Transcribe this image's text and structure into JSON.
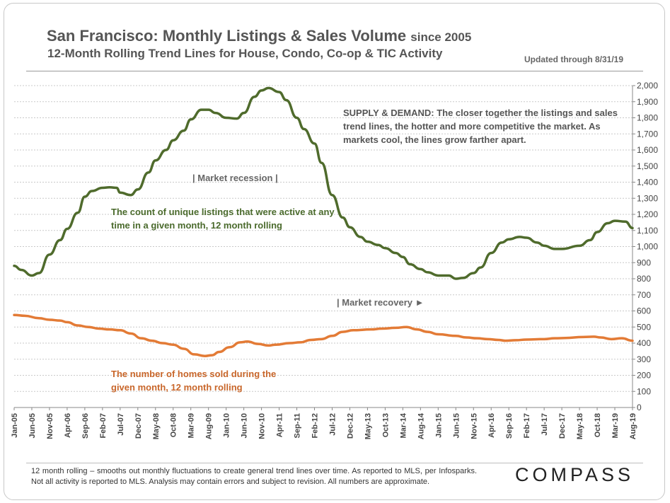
{
  "header": {
    "title_main": "San Francisco: Monthly Listings & Sales Volume",
    "title_since": "since 2005",
    "subtitle": "12-Month Rolling Trend Lines for House, Condo, Co-op & TIC Activity",
    "updated": "Updated through 8/31/19"
  },
  "annotations": {
    "supply_demand": "SUPPLY & DEMAND: The closer together the listings and sales trend lines, the hotter and more competitive the market. As markets cool, the lines grow farther apart.",
    "listings_note": "The count of unique listings that were active at any time in a given month, 12 month rolling",
    "sold_note": "The number of homes sold during the given month, 12 month rolling",
    "recession": "| Market recession |",
    "recovery": "| Market recovery ►"
  },
  "footer": {
    "footnote": "12 month rolling – smooths out monthly fluctuations to create general trend lines over time. As reported to MLS, per Infosparks. Not all activity is reported to MLS. Analysis may contain errors and subject to revision. All numbers are approximate.",
    "logo": "COMPASS"
  },
  "chart_data": {
    "type": "line",
    "x_ticks": [
      "Jan-05",
      "Jun-05",
      "Nov-05",
      "Apr-06",
      "Sep-06",
      "Feb-07",
      "Jul-07",
      "Dec-07",
      "May-08",
      "Oct-08",
      "Mar-09",
      "Aug-09",
      "Jan-10",
      "Jun-10",
      "Nov-10",
      "Apr-11",
      "Sep-11",
      "Feb-12",
      "Jul-12",
      "Dec-12",
      "May-13",
      "Oct-13",
      "Mar-14",
      "Aug-14",
      "Jan-15",
      "Jun-15",
      "Nov-15",
      "Apr-16",
      "Sep-16",
      "Feb-17",
      "Jul-17",
      "Dec-17",
      "May-18",
      "Oct-18",
      "Mar-19",
      "Aug-19"
    ],
    "y_ticks": [
      "0",
      "100",
      "200",
      "300",
      "400",
      "500",
      "600",
      "700",
      "800",
      "900",
      "1,000",
      "1,100",
      "1,200",
      "1,300",
      "1,400",
      "1,500",
      "1,600",
      "1,700",
      "1,800",
      "1,900",
      "2,000"
    ],
    "ylim": [
      0,
      2000
    ],
    "y_axis_side": "right",
    "grid": true,
    "series": [
      {
        "color": "#4f6b2c",
        "points": [
          [
            "Jan-05",
            880
          ],
          [
            "Mar-05",
            855
          ],
          [
            "Jun-05",
            820
          ],
          [
            "Aug-05",
            835
          ],
          [
            "Nov-05",
            950
          ],
          [
            "Feb-06",
            1040
          ],
          [
            "Apr-06",
            1110
          ],
          [
            "Jul-06",
            1210
          ],
          [
            "Sep-06",
            1310
          ],
          [
            "Nov-06",
            1345
          ],
          [
            "Feb-07",
            1365
          ],
          [
            "Apr-07",
            1368
          ],
          [
            "Jun-07",
            1365
          ],
          [
            "Jul-07",
            1335
          ],
          [
            "Oct-07",
            1320
          ],
          [
            "Dec-07",
            1355
          ],
          [
            "Mar-08",
            1460
          ],
          [
            "May-08",
            1535
          ],
          [
            "Aug-08",
            1600
          ],
          [
            "Oct-08",
            1660
          ],
          [
            "Jan-09",
            1720
          ],
          [
            "Mar-09",
            1790
          ],
          [
            "Jun-09",
            1850
          ],
          [
            "Aug-09",
            1850
          ],
          [
            "Oct-09",
            1830
          ],
          [
            "Jan-10",
            1800
          ],
          [
            "Apr-10",
            1795
          ],
          [
            "Jun-10",
            1830
          ],
          [
            "Sep-10",
            1930
          ],
          [
            "Nov-10",
            1970
          ],
          [
            "Jan-11",
            1985
          ],
          [
            "Apr-11",
            1960
          ],
          [
            "Jun-11",
            1910
          ],
          [
            "Sep-11",
            1800
          ],
          [
            "Nov-11",
            1730
          ],
          [
            "Feb-12",
            1640
          ],
          [
            "Apr-12",
            1520
          ],
          [
            "Jul-12",
            1320
          ],
          [
            "Oct-12",
            1180
          ],
          [
            "Dec-12",
            1120
          ],
          [
            "Mar-13",
            1060
          ],
          [
            "May-13",
            1030
          ],
          [
            "Aug-13",
            1010
          ],
          [
            "Oct-13",
            990
          ],
          [
            "Jan-14",
            960
          ],
          [
            "Mar-14",
            935
          ],
          [
            "May-14",
            890
          ],
          [
            "Aug-14",
            860
          ],
          [
            "Oct-14",
            840
          ],
          [
            "Jan-15",
            820
          ],
          [
            "Apr-15",
            820
          ],
          [
            "Jun-15",
            800
          ],
          [
            "Aug-15",
            805
          ],
          [
            "Nov-15",
            835
          ],
          [
            "Jan-16",
            870
          ],
          [
            "Apr-16",
            960
          ],
          [
            "Jul-16",
            1025
          ],
          [
            "Sep-16",
            1045
          ],
          [
            "Dec-16",
            1060
          ],
          [
            "Feb-17",
            1055
          ],
          [
            "May-17",
            1025
          ],
          [
            "Jul-17",
            1005
          ],
          [
            "Oct-17",
            985
          ],
          [
            "Dec-17",
            985
          ],
          [
            "May-18",
            1005
          ],
          [
            "Aug-18",
            1040
          ],
          [
            "Oct-18",
            1090
          ],
          [
            "Jan-19",
            1145
          ],
          [
            "Mar-19",
            1160
          ],
          [
            "Jun-19",
            1155
          ],
          [
            "Aug-19",
            1115
          ]
        ]
      },
      {
        "color": "#e37b36",
        "points": [
          [
            "Jan-05",
            575
          ],
          [
            "Apr-05",
            570
          ],
          [
            "Aug-05",
            555
          ],
          [
            "Nov-05",
            545
          ],
          [
            "Feb-06",
            540
          ],
          [
            "Apr-06",
            530
          ],
          [
            "Jul-06",
            510
          ],
          [
            "Oct-06",
            500
          ],
          [
            "Jan-07",
            490
          ],
          [
            "Apr-07",
            485
          ],
          [
            "Jul-07",
            480
          ],
          [
            "Oct-07",
            460
          ],
          [
            "Jan-08",
            430
          ],
          [
            "Apr-08",
            415
          ],
          [
            "Jul-08",
            400
          ],
          [
            "Oct-08",
            390
          ],
          [
            "Jan-09",
            365
          ],
          [
            "Apr-09",
            330
          ],
          [
            "Jul-09",
            320
          ],
          [
            "Sep-09",
            325
          ],
          [
            "Nov-09",
            345
          ],
          [
            "Feb-10",
            375
          ],
          [
            "May-10",
            405
          ],
          [
            "Jul-10",
            410
          ],
          [
            "Oct-10",
            395
          ],
          [
            "Jan-11",
            385
          ],
          [
            "Mar-11",
            390
          ],
          [
            "Jul-11",
            400
          ],
          [
            "Oct-11",
            405
          ],
          [
            "Jan-12",
            420
          ],
          [
            "Apr-12",
            425
          ],
          [
            "Jul-12",
            445
          ],
          [
            "Oct-12",
            470
          ],
          [
            "Jan-13",
            480
          ],
          [
            "Jun-13",
            485
          ],
          [
            "Sep-13",
            490
          ],
          [
            "Jan-14",
            495
          ],
          [
            "Apr-14",
            500
          ],
          [
            "Jul-14",
            485
          ],
          [
            "Oct-14",
            470
          ],
          [
            "Jan-15",
            455
          ],
          [
            "Jun-15",
            445
          ],
          [
            "Sep-15",
            435
          ],
          [
            "Dec-15",
            430
          ],
          [
            "Mar-16",
            425
          ],
          [
            "Jun-16",
            420
          ],
          [
            "Aug-16",
            415
          ],
          [
            "Nov-16",
            418
          ],
          [
            "Feb-17",
            422
          ],
          [
            "Jul-17",
            425
          ],
          [
            "Oct-17",
            430
          ],
          [
            "Jan-18",
            432
          ],
          [
            "Jun-18",
            438
          ],
          [
            "Sep-18",
            440
          ],
          [
            "Nov-18",
            435
          ],
          [
            "Feb-19",
            425
          ],
          [
            "May-19",
            430
          ],
          [
            "Aug-19",
            415
          ]
        ]
      }
    ]
  }
}
